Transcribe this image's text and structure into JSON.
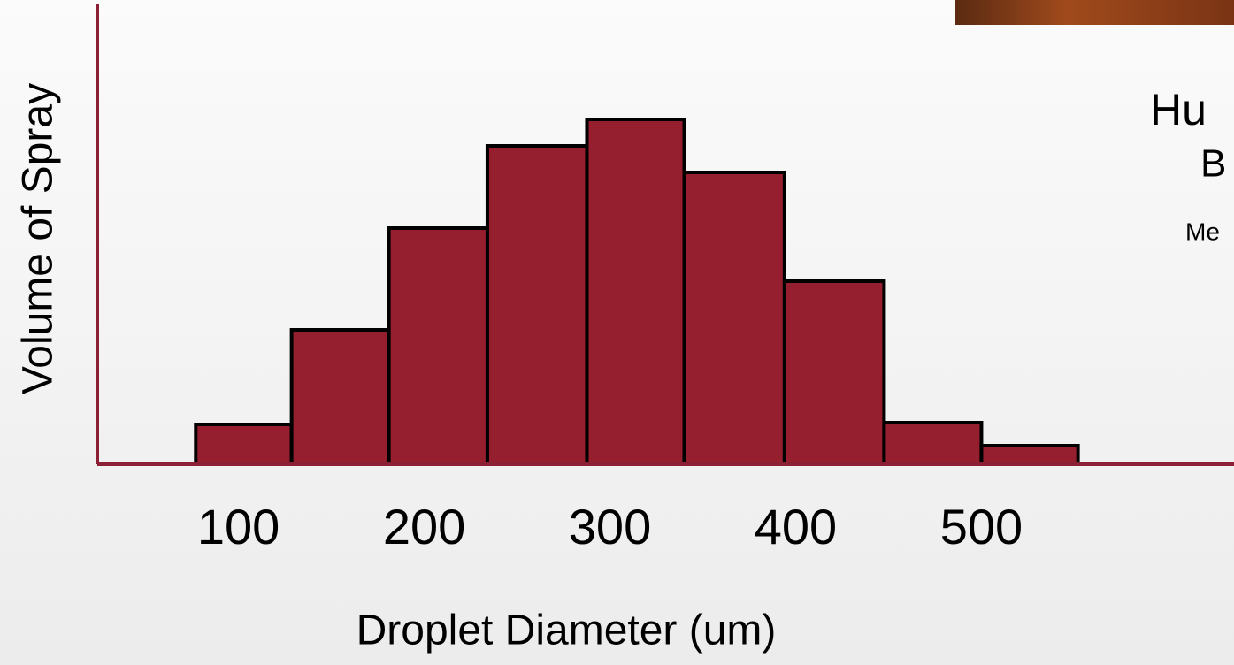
{
  "chart_data": {
    "type": "histogram",
    "x_label": "Droplet Diameter (um)",
    "y_label": "Volume of Spray",
    "bins": [
      77,
      128.6,
      181,
      234,
      287.6,
      340,
      394,
      447.6,
      500,
      552
    ],
    "values": [
      45,
      152,
      267,
      360,
      390,
      330,
      207,
      47,
      21
    ],
    "color": "#951f2f",
    "edge_color": "#000000",
    "axis_color": "#8b2035",
    "xlim": [
      24,
      636
    ],
    "ylim": [
      0,
      520
    ],
    "xticks": [
      100,
      200,
      300,
      400,
      500
    ],
    "annotations": [
      "Hu",
      "B",
      "Me"
    ]
  }
}
